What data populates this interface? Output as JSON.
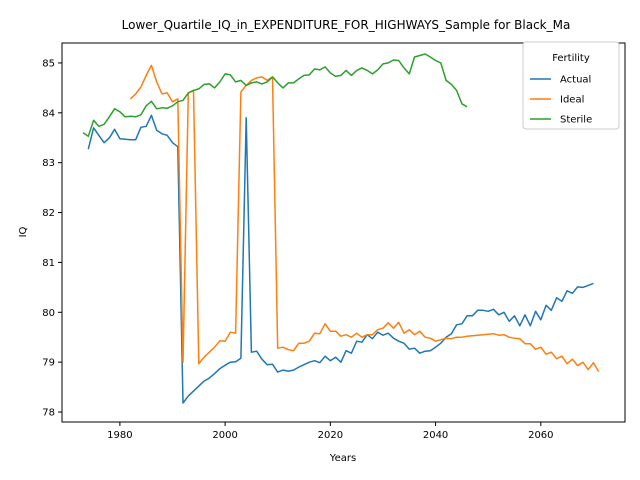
{
  "chart_data": {
    "type": "line",
    "title": "Lower_Quartile_IQ_in_EXPENDITURE_FOR_HIGHWAYS_Sample for Black_Ma",
    "xlabel": "Years",
    "ylabel": "IQ",
    "xlim": [
      1969,
      2076
    ],
    "ylim": [
      77.8,
      85.4
    ],
    "xticks": [
      1980,
      2000,
      2020,
      2040,
      2060
    ],
    "yticks": [
      78,
      79,
      80,
      81,
      82,
      83,
      84,
      85
    ],
    "grid": false,
    "legend": {
      "title": "Fertility",
      "position": "top-right"
    },
    "series": [
      {
        "name": "Actual",
        "color": "#1f77b4",
        "x": [
          1974,
          1975,
          1976,
          1977,
          1978,
          1979,
          1980,
          1981,
          1982,
          1983,
          1984,
          1985,
          1986,
          1987,
          1988,
          1989,
          1990,
          1991,
          1992,
          1993,
          1994,
          1995,
          1996,
          1997,
          1998,
          1999,
          2000,
          2001,
          2002,
          2003,
          2004,
          2005,
          2006,
          2007,
          2008,
          2009,
          2010,
          2011,
          2012,
          2013,
          2014,
          2015,
          2016,
          2017,
          2018,
          2019,
          2020,
          2021,
          2022,
          2023,
          2024,
          2025,
          2026,
          2027,
          2028,
          2029,
          2030,
          2031,
          2032,
          2033,
          2034,
          2035,
          2036,
          2037,
          2038,
          2039,
          2040,
          2041,
          2042,
          2043,
          2044,
          2045,
          2046,
          2047,
          2048,
          2049,
          2050,
          2051,
          2052,
          2053,
          2054,
          2055,
          2056,
          2057,
          2058,
          2059,
          2060,
          2061,
          2062,
          2063,
          2064,
          2065,
          2066,
          2067,
          2068,
          2069,
          2070
        ],
        "y": [
          83.27,
          83.7,
          83.55,
          83.4,
          83.5,
          83.67,
          83.48,
          83.47,
          83.46,
          83.46,
          83.71,
          83.73,
          83.95,
          83.65,
          83.58,
          83.55,
          83.4,
          83.32,
          78.18,
          78.32,
          78.42,
          78.52,
          78.62,
          78.68,
          78.77,
          78.87,
          78.94,
          79.0,
          79.01,
          79.08,
          83.9,
          79.2,
          79.22,
          79.06,
          78.95,
          78.96,
          78.8,
          78.84,
          78.82,
          78.84,
          78.9,
          78.95,
          79.0,
          79.03,
          78.99,
          79.12,
          79.03,
          79.1,
          79.0,
          79.23,
          79.18,
          79.42,
          79.4,
          79.55,
          79.47,
          79.6,
          79.54,
          79.58,
          79.48,
          79.42,
          79.38,
          79.26,
          79.28,
          79.18,
          79.22,
          79.23,
          79.3,
          79.38,
          79.5,
          79.57,
          79.75,
          79.77,
          79.93,
          79.93,
          80.04,
          80.04,
          80.02,
          80.06,
          79.95,
          80.0,
          79.82,
          79.93,
          79.73,
          79.95,
          79.73,
          80.02,
          79.85,
          80.14,
          80.04,
          80.29,
          80.22,
          80.43,
          80.38,
          80.51,
          80.5,
          80.54,
          80.58
        ]
      },
      {
        "name": "Ideal",
        "color": "#ff7f0e",
        "x": [
          1982,
          1983,
          1984,
          1985,
          1986,
          1987,
          1988,
          1989,
          1990,
          1991,
          1992,
          1993,
          1994,
          1995,
          1996,
          1997,
          1998,
          1999,
          2000,
          2001,
          2002,
          2003,
          2004,
          2005,
          2006,
          2007,
          2008,
          2009,
          2010,
          2011,
          2012,
          2013,
          2014,
          2015,
          2016,
          2017,
          2018,
          2019,
          2020,
          2021,
          2022,
          2023,
          2024,
          2025,
          2026,
          2027,
          2028,
          2029,
          2030,
          2031,
          2032,
          2033,
          2034,
          2035,
          2036,
          2037,
          2038,
          2039,
          2040,
          2041,
          2042,
          2043,
          2044,
          2045,
          2046,
          2047,
          2048,
          2049,
          2050,
          2051,
          2052,
          2053,
          2054,
          2055,
          2056,
          2057,
          2058,
          2059,
          2060,
          2061,
          2062,
          2063,
          2064,
          2065,
          2066,
          2067,
          2068,
          2069,
          2070
        ],
        "y": [
          84.28,
          84.38,
          84.52,
          84.75,
          84.95,
          84.62,
          84.38,
          84.4,
          84.22,
          84.28,
          79.0,
          84.4,
          84.45,
          78.97,
          79.1,
          79.2,
          79.3,
          79.43,
          79.42,
          79.6,
          79.58,
          84.42,
          84.55,
          84.65,
          84.7,
          84.72,
          84.65,
          84.72,
          79.28,
          79.3,
          79.25,
          79.23,
          79.38,
          79.38,
          79.42,
          79.58,
          79.57,
          79.77,
          79.62,
          79.62,
          79.52,
          79.55,
          79.5,
          79.58,
          79.5,
          79.55,
          79.55,
          79.65,
          79.68,
          79.79,
          79.68,
          79.8,
          79.58,
          79.65,
          79.55,
          79.62,
          79.5,
          79.48,
          79.42,
          79.45,
          79.48,
          79.47,
          79.5,
          79.5,
          79.52,
          79.53,
          79.54,
          79.55,
          79.56,
          79.57,
          79.54,
          79.55,
          79.5,
          79.48,
          79.47,
          79.37,
          79.37,
          79.26,
          79.3,
          79.16,
          79.2,
          79.07,
          79.12,
          78.97,
          79.06,
          78.93,
          79.0,
          78.85,
          78.99
        ],
        "y_tail": [
          78.81
        ]
      },
      {
        "name": "Sterile",
        "color": "#2ca02c",
        "x": [
          1973,
          1974,
          1975,
          1976,
          1977,
          1978,
          1979,
          1980,
          1981,
          1982,
          1983,
          1984,
          1985,
          1986,
          1987,
          1988,
          1989,
          1990,
          1991,
          1992,
          1993,
          1994,
          1995,
          1996,
          1997,
          1998,
          1999,
          2000,
          2001,
          2002,
          2003,
          2004,
          2005,
          2006,
          2007,
          2008,
          2009,
          2010,
          2011,
          2012,
          2013,
          2014,
          2015,
          2016,
          2017,
          2018,
          2019,
          2020,
          2021,
          2022,
          2023,
          2024,
          2025,
          2026,
          2027,
          2028,
          2029,
          2030,
          2031,
          2032,
          2033,
          2034,
          2035,
          2036,
          2037,
          2038,
          2039,
          2040,
          2041,
          2042,
          2043,
          2044,
          2045,
          2046
        ],
        "y": [
          83.6,
          83.53,
          83.85,
          83.73,
          83.77,
          83.92,
          84.08,
          84.02,
          83.92,
          83.93,
          83.92,
          83.96,
          84.14,
          84.23,
          84.08,
          84.1,
          84.09,
          84.14,
          84.22,
          84.25,
          84.4,
          84.45,
          84.48,
          84.57,
          84.58,
          84.5,
          84.62,
          84.78,
          84.76,
          84.62,
          84.65,
          84.55,
          84.6,
          84.62,
          84.58,
          84.62,
          84.72,
          84.6,
          84.5,
          84.6,
          84.6,
          84.68,
          84.75,
          84.76,
          84.88,
          84.86,
          84.92,
          84.8,
          84.73,
          84.75,
          84.85,
          84.75,
          84.85,
          84.9,
          84.85,
          84.78,
          84.86,
          84.98,
          85.0,
          85.06,
          85.05,
          84.9,
          84.78,
          85.12,
          85.15,
          85.18,
          85.12,
          85.05,
          85.0,
          84.65,
          84.57,
          84.45,
          84.18,
          84.12
        ]
      }
    ]
  }
}
